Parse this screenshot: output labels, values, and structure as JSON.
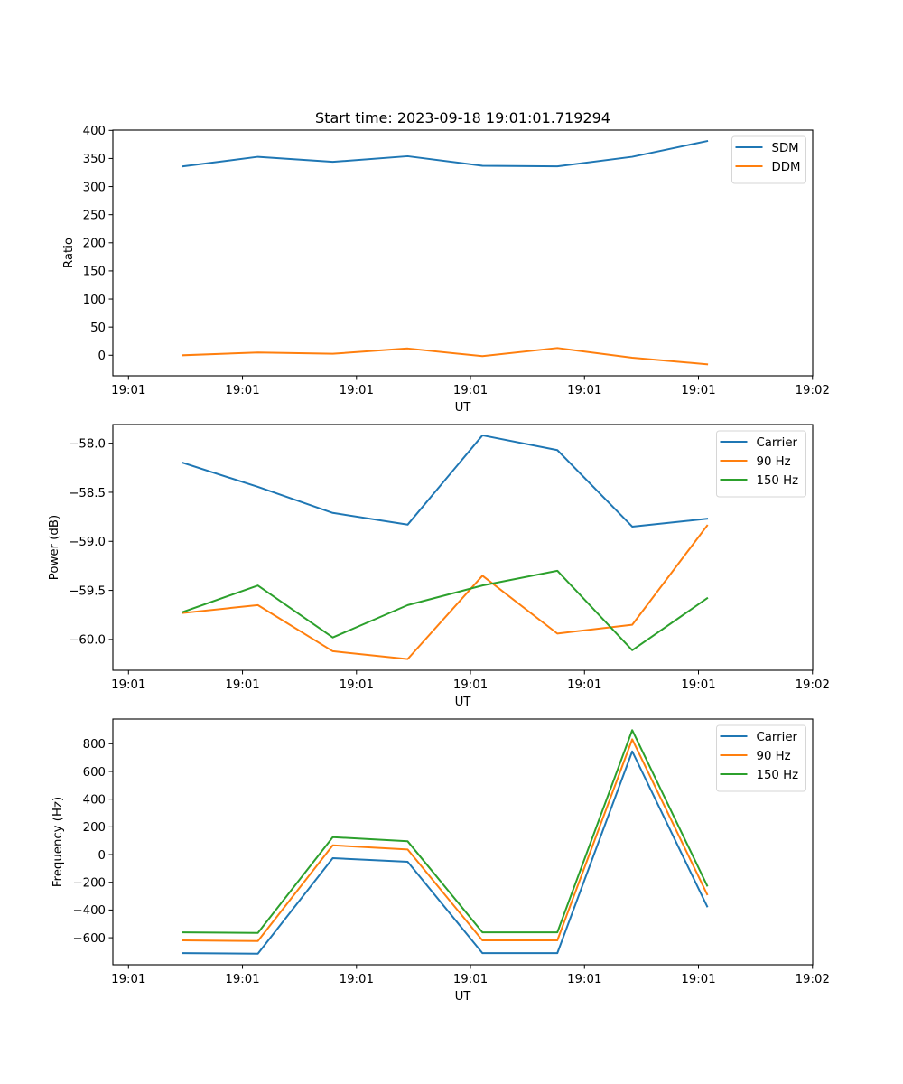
{
  "figure": {
    "title": "Start time: 2023-09-18 19:01:01.719294"
  },
  "chart_data": [
    {
      "type": "line",
      "title": "Start time: 2023-09-18 19:01:01.719294",
      "xlabel": "UT",
      "ylabel": "Ratio",
      "x_tick_labels": [
        "19:01",
        "19:01",
        "19:01",
        "19:01",
        "19:01",
        "19:01",
        "19:02"
      ],
      "x_ticks": [
        0,
        1,
        2,
        3,
        4,
        5,
        6
      ],
      "xlim": [
        -0.137,
        6.002
      ],
      "x": [
        0.478,
        1.135,
        1.792,
        2.449,
        3.105,
        3.762,
        4.419,
        5.076
      ],
      "ylim": [
        -36.5,
        400.5
      ],
      "y_ticks": [
        0,
        50,
        100,
        150,
        200,
        250,
        300,
        350,
        400
      ],
      "y_tick_labels": [
        "0",
        "50",
        "100",
        "150",
        "200",
        "250",
        "300",
        "350",
        "400"
      ],
      "grid": false,
      "legend_position": "top-right",
      "series": [
        {
          "name": "SDM",
          "color": "#1f77b4",
          "values": [
            336,
            353,
            344,
            354,
            337,
            336,
            353,
            381
          ]
        },
        {
          "name": "DDM",
          "color": "#ff7f0e",
          "values": [
            0,
            4.8,
            2.6,
            12,
            -1.6,
            12.8,
            -4.3,
            -16
          ]
        }
      ]
    },
    {
      "type": "line",
      "title": "",
      "xlabel": "UT",
      "ylabel": "Power (dB)",
      "x_tick_labels": [
        "19:01",
        "19:01",
        "19:01",
        "19:01",
        "19:01",
        "19:01",
        "19:02"
      ],
      "x_ticks": [
        0,
        1,
        2,
        3,
        4,
        5,
        6
      ],
      "xlim": [
        -0.137,
        6.002
      ],
      "x": [
        0.478,
        1.135,
        1.792,
        2.449,
        3.105,
        3.762,
        4.419,
        5.076
      ],
      "ylim": [
        -60.314,
        -57.81
      ],
      "y_ticks": [
        -60.0,
        -59.5,
        -59.0,
        -58.5,
        -58.0
      ],
      "y_tick_labels": [
        "−60.0",
        "−59.5",
        "−59.0",
        "−58.5",
        "−58.0"
      ],
      "grid": false,
      "legend_position": "top-right",
      "series": [
        {
          "name": "Carrier",
          "color": "#1f77b4",
          "values": [
            -58.2,
            -58.445,
            -58.71,
            -58.83,
            -57.92,
            -58.07,
            -58.85,
            -58.77
          ]
        },
        {
          "name": "90 Hz",
          "color": "#ff7f0e",
          "values": [
            -59.73,
            -59.65,
            -60.12,
            -60.2,
            -59.35,
            -59.94,
            -59.85,
            -58.84
          ]
        },
        {
          "name": "150 Hz",
          "color": "#2ca02c",
          "values": [
            -59.72,
            -59.45,
            -59.98,
            -59.65,
            -59.45,
            -59.3,
            -60.11,
            -59.58
          ]
        }
      ]
    },
    {
      "type": "line",
      "title": "",
      "xlabel": "UT",
      "ylabel": "Frequency (Hz)",
      "x_tick_labels": [
        "19:01",
        "19:01",
        "19:01",
        "19:01",
        "19:01",
        "19:01",
        "19:02"
      ],
      "x_ticks": [
        0,
        1,
        2,
        3,
        4,
        5,
        6
      ],
      "xlim": [
        -0.137,
        6.002
      ],
      "x": [
        0.478,
        1.135,
        1.792,
        2.449,
        3.105,
        3.762,
        4.419,
        5.076
      ],
      "ylim": [
        -795,
        978
      ],
      "y_ticks": [
        -600,
        -400,
        -200,
        0,
        200,
        400,
        600,
        800
      ],
      "y_tick_labels": [
        "−600",
        "−400",
        "−200",
        "0",
        "200",
        "400",
        "600",
        "800"
      ],
      "grid": false,
      "legend_position": "top-right",
      "series": [
        {
          "name": "Carrier",
          "color": "#1f77b4",
          "values": [
            -711,
            -715,
            -26,
            -52,
            -711,
            -711,
            745,
            -374
          ]
        },
        {
          "name": "90 Hz",
          "color": "#ff7f0e",
          "values": [
            -619,
            -624,
            67,
            37,
            -619,
            -619,
            832,
            -287
          ]
        },
        {
          "name": "150 Hz",
          "color": "#2ca02c",
          "values": [
            -561,
            -565,
            126,
            96,
            -561,
            -561,
            898,
            -224
          ]
        }
      ]
    }
  ]
}
